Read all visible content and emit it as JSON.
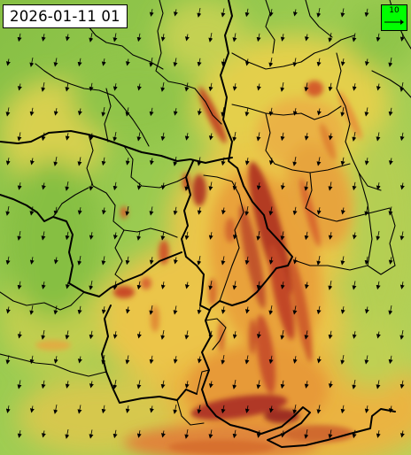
{
  "map": {
    "timestamp": "2026-01-11 01",
    "legend": {
      "reference_speed": "10",
      "background_color": "#00ff00"
    },
    "palette": {
      "calm": "#78b83c",
      "light": "#a5cf55",
      "moderate": "#f0d24e",
      "fresh": "#f2a93c",
      "strong": "#d85a23",
      "gale": "#9a2a1e",
      "borders": "#000000",
      "arrows": "#000000"
    },
    "wind_direction": "north-to-south"
  }
}
